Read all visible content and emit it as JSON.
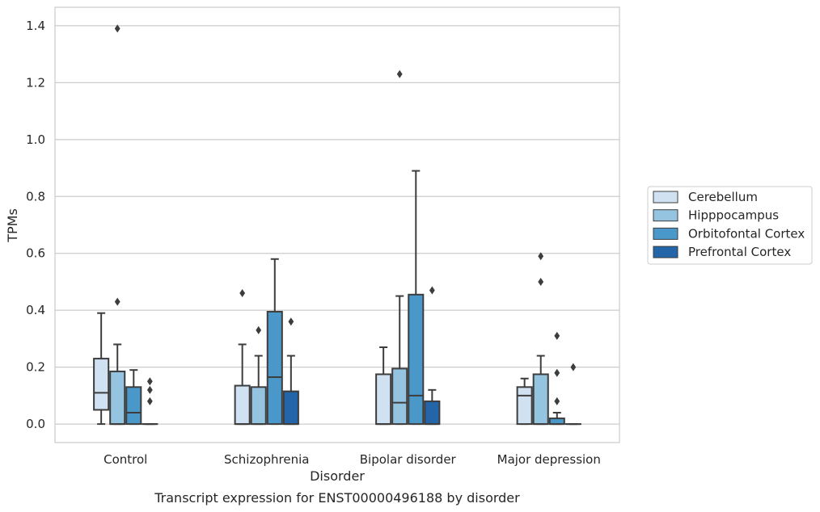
{
  "chart_data": {
    "type": "box",
    "caption": "Transcript expression for ENST00000496188 by disorder",
    "xlabel": "Disorder",
    "ylabel": "TPMs",
    "ylim": [
      -0.065,
      1.465
    ],
    "yticks": [
      0.0,
      0.2,
      0.4,
      0.6,
      0.8,
      1.0,
      1.2,
      1.4
    ],
    "ytick_labels": [
      "0.0",
      "0.2",
      "0.4",
      "0.6",
      "0.8",
      "1.0",
      "1.2",
      "1.4"
    ],
    "grid": "horizontal",
    "legend_placement": "center-right outside",
    "categories": [
      "Control",
      "Schizophrenia",
      "Bipolar disorder",
      "Major depression"
    ],
    "series": [
      {
        "name": "Cerebellum",
        "color": "#d0e1f2",
        "boxes": [
          {
            "whislo": 0.0,
            "q1": 0.05,
            "med": 0.11,
            "q3": 0.23,
            "whishi": 0.39,
            "fliers": []
          },
          {
            "whislo": 0.0,
            "q1": 0.0,
            "med": 0.0,
            "q3": 0.135,
            "whishi": 0.28,
            "fliers": [
              0.46
            ]
          },
          {
            "whislo": 0.0,
            "q1": 0.0,
            "med": 0.0,
            "q3": 0.175,
            "whishi": 0.27,
            "fliers": []
          },
          {
            "whislo": 0.0,
            "q1": 0.0,
            "med": 0.1,
            "q3": 0.13,
            "whishi": 0.16,
            "fliers": []
          }
        ]
      },
      {
        "name": "Hipppocampus",
        "color": "#94c4df",
        "boxes": [
          {
            "whislo": 0.0,
            "q1": 0.0,
            "med": 0.0,
            "q3": 0.185,
            "whishi": 0.28,
            "fliers": [
              1.39,
              0.43
            ]
          },
          {
            "whislo": 0.0,
            "q1": 0.0,
            "med": 0.0,
            "q3": 0.13,
            "whishi": 0.24,
            "fliers": [
              0.33
            ]
          },
          {
            "whislo": 0.0,
            "q1": 0.0,
            "med": 0.075,
            "q3": 0.195,
            "whishi": 0.45,
            "fliers": [
              1.23
            ]
          },
          {
            "whislo": 0.0,
            "q1": 0.0,
            "med": 0.0,
            "q3": 0.175,
            "whishi": 0.24,
            "fliers": [
              0.59,
              0.5
            ]
          }
        ]
      },
      {
        "name": "Orbitofontal Cortex",
        "color": "#4a98c9",
        "boxes": [
          {
            "whislo": 0.0,
            "q1": 0.0,
            "med": 0.04,
            "q3": 0.13,
            "whishi": 0.19,
            "fliers": []
          },
          {
            "whislo": 0.0,
            "q1": 0.0,
            "med": 0.165,
            "q3": 0.395,
            "whishi": 0.58,
            "fliers": []
          },
          {
            "whislo": 0.0,
            "q1": 0.0,
            "med": 0.1,
            "q3": 0.455,
            "whishi": 0.89,
            "fliers": []
          },
          {
            "whislo": 0.0,
            "q1": 0.0,
            "med": 0.0,
            "q3": 0.02,
            "whishi": 0.04,
            "fliers": [
              0.31,
              0.18,
              0.08
            ]
          }
        ]
      },
      {
        "name": "Prefrontal Cortex",
        "color": "#2464a8",
        "boxes": [
          {
            "whislo": 0.0,
            "q1": 0.0,
            "med": 0.0,
            "q3": 0.0,
            "whishi": 0.0,
            "fliers": [
              0.15,
              0.12,
              0.08
            ]
          },
          {
            "whislo": 0.0,
            "q1": 0.0,
            "med": 0.0,
            "q3": 0.115,
            "whishi": 0.24,
            "fliers": [
              0.36
            ]
          },
          {
            "whislo": 0.0,
            "q1": 0.0,
            "med": 0.0,
            "q3": 0.08,
            "whishi": 0.12,
            "fliers": [
              0.47
            ]
          },
          {
            "whislo": 0.0,
            "q1": 0.0,
            "med": 0.0,
            "q3": 0.0,
            "whishi": 0.0,
            "fliers": [
              0.2
            ]
          }
        ]
      }
    ]
  }
}
